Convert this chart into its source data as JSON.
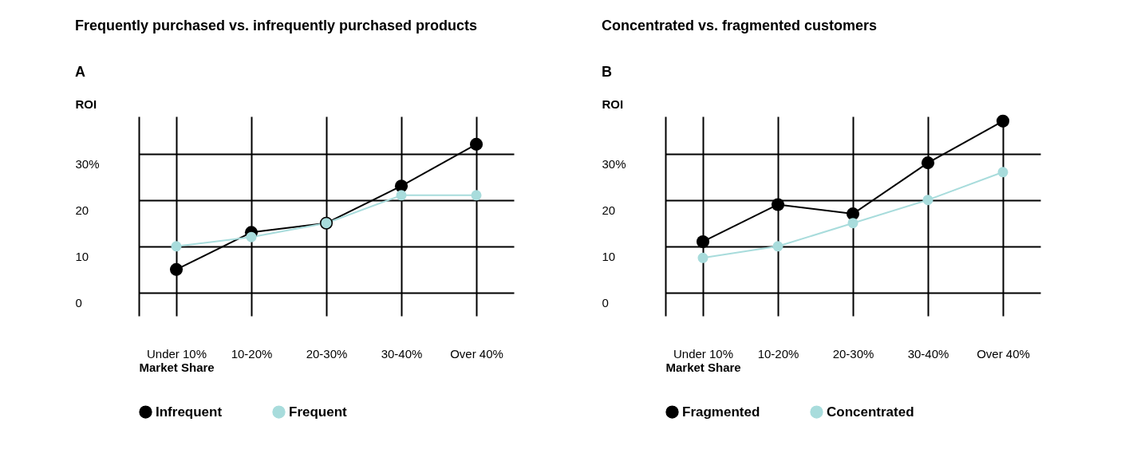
{
  "chart_data": [
    {
      "type": "line",
      "title": "Frequently purchased vs. infrequently purchased products",
      "annotations": [
        "A"
      ],
      "xlabel": "Market Share",
      "ylabel": "ROI",
      "categories": [
        "Under 10%",
        "10-20%",
        "20-30%",
        "30-40%",
        "Over 40%"
      ],
      "series": [
        {
          "name": "Infrequent",
          "color": "#000000",
          "values": [
            5,
            13,
            15,
            23,
            32
          ]
        },
        {
          "name": "Frequent",
          "color": "#a8dcdc",
          "values": [
            10,
            12,
            15,
            21,
            21
          ]
        }
      ],
      "ylim": [
        -5,
        38
      ],
      "yticks": [
        0,
        10,
        20,
        {
          "value": 30,
          "label": "30%"
        }
      ],
      "grid": true,
      "legend": "bottom",
      "marker": "circle"
    },
    {
      "type": "line",
      "title": "Concentrated vs. fragmented customers",
      "annotations": [
        "B"
      ],
      "xlabel": "Market Share",
      "ylabel": "ROI",
      "categories": [
        "Under 10%",
        "10-20%",
        "20-30%",
        "30-40%",
        "Over 40%"
      ],
      "series": [
        {
          "name": "Fragmented",
          "color": "#000000",
          "values": [
            11,
            19,
            17,
            28,
            37
          ]
        },
        {
          "name": "Concentrated",
          "color": "#a8dcdc",
          "values": [
            7.5,
            10,
            15,
            20,
            26
          ]
        }
      ],
      "ylim": [
        -5,
        38
      ],
      "yticks": [
        0,
        10,
        20,
        {
          "value": 30,
          "label": "30%"
        }
      ],
      "grid": true,
      "legend": "bottom",
      "marker": "circle"
    }
  ]
}
